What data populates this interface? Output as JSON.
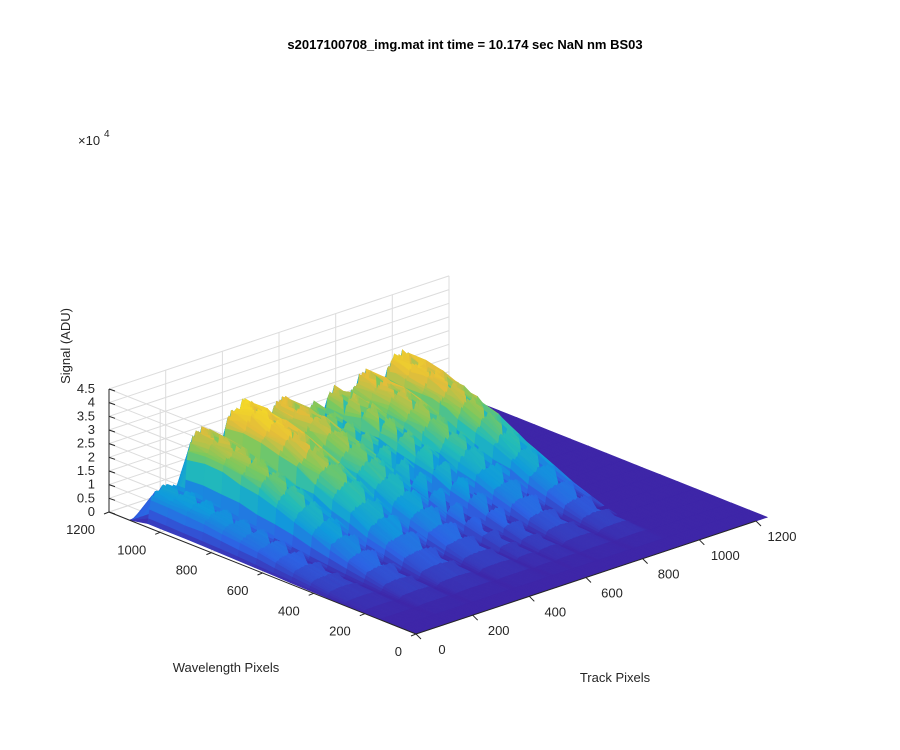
{
  "chart_data": {
    "type": "surface",
    "title": "s2017100708_img.mat int time = 10.174 sec  NaN nm BS03",
    "xlabel": "Track Pixels",
    "ylabel": "Wavelength Pixels",
    "zlabel": "Signal (ADU)",
    "z_exponent_label": "×10",
    "z_exponent_power": "4",
    "xlim": [
      0,
      1200
    ],
    "ylim": [
      0,
      1200
    ],
    "zlim": [
      0,
      45000
    ],
    "x_ticks": [
      "0",
      "200",
      "400",
      "600",
      "800",
      "1000",
      "1200"
    ],
    "y_ticks": [
      "0",
      "200",
      "400",
      "600",
      "800",
      "1000",
      "1200"
    ],
    "z_ticks": [
      "0",
      "0.5",
      "1",
      "1.5",
      "2",
      "2.5",
      "3",
      "3.5",
      "4",
      "4.5"
    ],
    "grid": true,
    "colormap": [
      "#3e26a8",
      "#2d63e4",
      "#109bdc",
      "#23bcb8",
      "#7bc95e",
      "#e4bd3a",
      "#f8df23"
    ],
    "track_peaks": [
      {
        "x": 0,
        "peak": 13000
      },
      {
        "x": 145,
        "peak": 29000
      },
      {
        "x": 285,
        "peak": 34000
      },
      {
        "x": 430,
        "peak": 30000
      },
      {
        "x": 560,
        "peak": 25000
      },
      {
        "x": 735,
        "peak": 28000
      },
      {
        "x": 850,
        "peak": 30000
      },
      {
        "x": 965,
        "peak": 33000
      }
    ]
  }
}
